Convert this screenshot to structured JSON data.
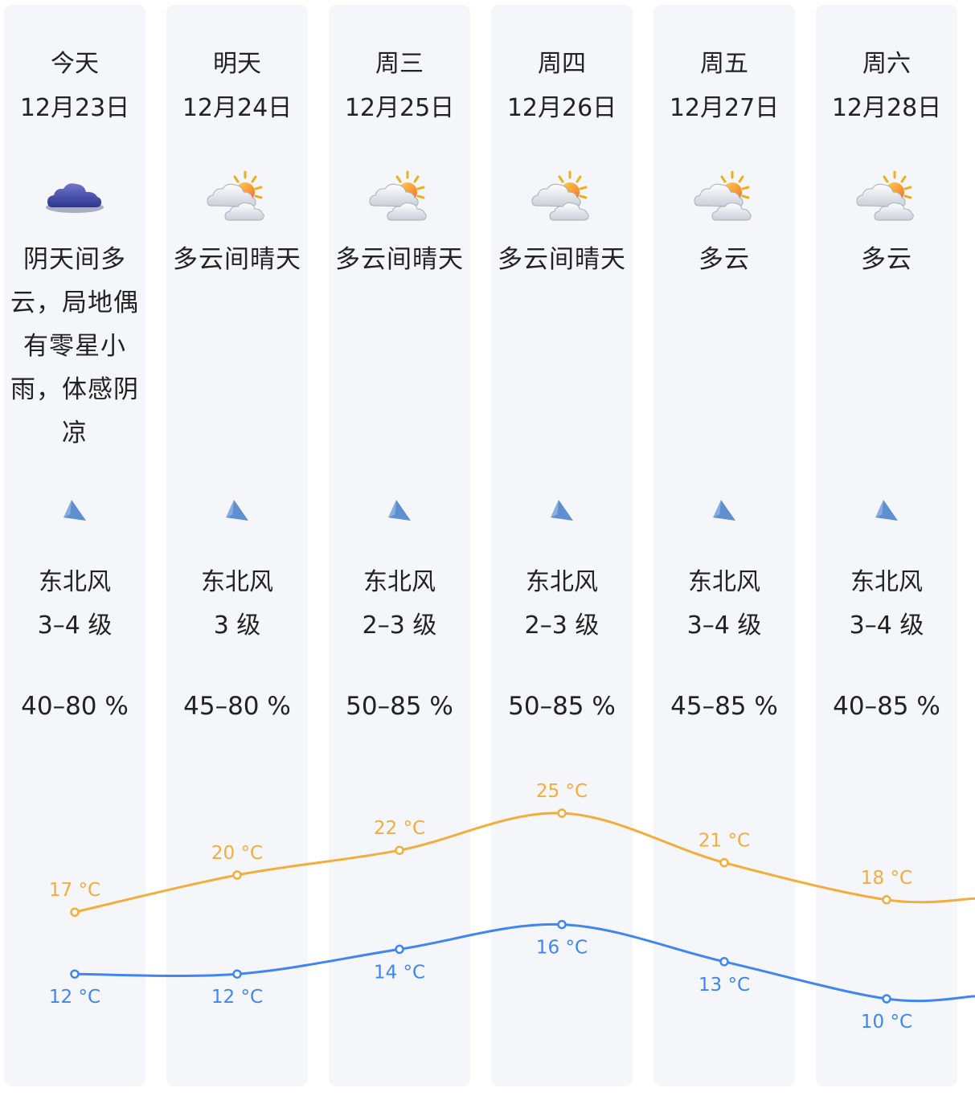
{
  "days": [
    {
      "name": "今天",
      "date": "12月23日",
      "icon": "overcast-cloud-icon",
      "desc": "阴天间多云，局地偶有零星小雨，体感阴凉",
      "wind_dir": "东北风",
      "wind_level": "3–4 级",
      "humidity": "40–80 %"
    },
    {
      "name": "明天",
      "date": "12月24日",
      "icon": "partly-cloudy-sun-icon",
      "desc": "多云间晴天",
      "wind_dir": "东北风",
      "wind_level": "3 级",
      "humidity": "45–80 %"
    },
    {
      "name": "周三",
      "date": "12月25日",
      "icon": "partly-cloudy-sun-icon",
      "desc": "多云间晴天",
      "wind_dir": "东北风",
      "wind_level": "2–3 级",
      "humidity": "50–85 %"
    },
    {
      "name": "周四",
      "date": "12月26日",
      "icon": "partly-cloudy-sun-icon",
      "desc": "多云间晴天",
      "wind_dir": "东北风",
      "wind_level": "2–3 级",
      "humidity": "50–85 %"
    },
    {
      "name": "周五",
      "date": "12月27日",
      "icon": "partly-cloudy-sun-icon",
      "desc": "多云",
      "wind_dir": "东北风",
      "wind_level": "3–4 级",
      "humidity": "45–85 %"
    },
    {
      "name": "周六",
      "date": "12月28日",
      "icon": "partly-cloudy-sun-icon",
      "desc": "多云",
      "wind_dir": "东北风",
      "wind_level": "3–4 级",
      "humidity": "40–85 %"
    }
  ],
  "colors": {
    "high": "#f2ad3c",
    "low": "#3f86f2",
    "card": "#f5f6fa",
    "wind": "#5f8fd0"
  },
  "chart_data": {
    "type": "line",
    "x": [
      "12月23日",
      "12月24日",
      "12月25日",
      "12月26日",
      "12月27日",
      "12月28日"
    ],
    "series": [
      {
        "values": [
          17,
          20,
          22,
          25,
          21,
          18
        ]
      },
      {
        "values": [
          12,
          12,
          14,
          16,
          13,
          10
        ]
      }
    ],
    "labels_high": [
      "17 °C",
      "20 °C",
      "22 °C",
      "25 °C",
      "21 °C",
      "18 °C"
    ],
    "labels_low": [
      "12 °C",
      "12 °C",
      "14 °C",
      "16 °C",
      "13 °C",
      "10 °C"
    ],
    "unit": "°C"
  }
}
